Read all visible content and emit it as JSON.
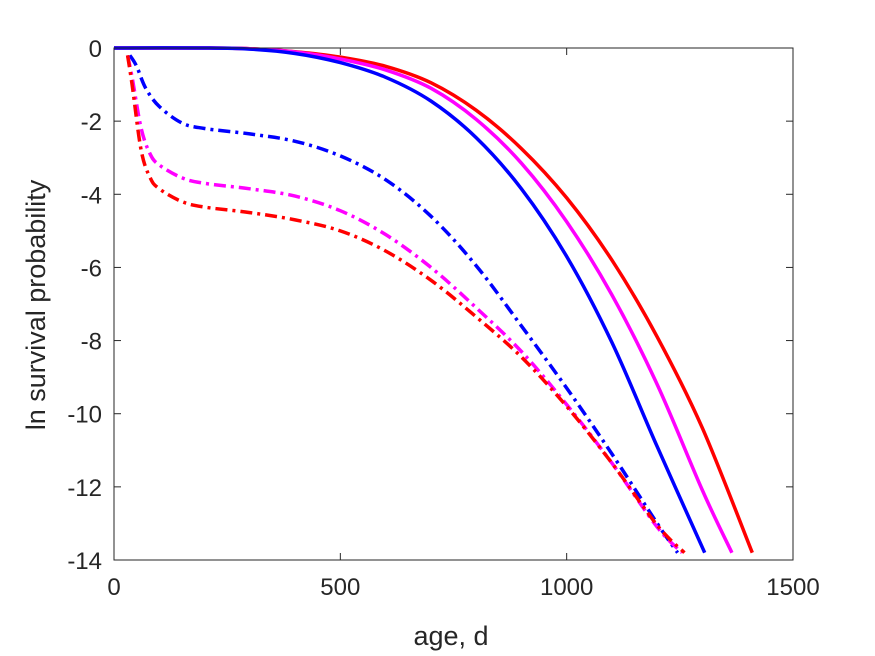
{
  "chart_data": {
    "type": "line",
    "title": "",
    "xlabel": "age, d",
    "ylabel": "ln survival probability",
    "xlim": [
      0,
      1500
    ],
    "ylim": [
      -14,
      0
    ],
    "xticks": [
      0,
      500,
      1000,
      1500
    ],
    "yticks": [
      0,
      -2,
      -4,
      -6,
      -8,
      -10,
      -12,
      -14
    ],
    "xtick_labels": [
      "0",
      "500",
      "1000",
      "1500"
    ],
    "ytick_labels": [
      "0",
      "-2",
      "-4",
      "-6",
      "-8",
      "-10",
      "-12",
      "-14"
    ],
    "grid": false,
    "box": true,
    "series": [
      {
        "color": "#ff0000",
        "style": "solid",
        "x": [
          0,
          200,
          300,
          400,
          500,
          600,
          700,
          800,
          900,
          1000,
          1100,
          1200,
          1300,
          1410
        ],
        "y": [
          0,
          0,
          -0.02,
          -0.1,
          -0.25,
          -0.5,
          -0.95,
          -1.7,
          -2.75,
          -4.1,
          -5.8,
          -7.9,
          -10.4,
          -13.8
        ]
      },
      {
        "color": "#ff00ff",
        "style": "solid",
        "x": [
          0,
          200,
          300,
          400,
          500,
          600,
          700,
          800,
          900,
          1000,
          1100,
          1200,
          1300,
          1365
        ],
        "y": [
          0,
          0,
          -0.02,
          -0.11,
          -0.3,
          -0.6,
          -1.1,
          -1.95,
          -3.15,
          -4.75,
          -6.75,
          -9.2,
          -12.1,
          -13.8
        ]
      },
      {
        "color": "#0000ff",
        "style": "solid",
        "x": [
          0,
          200,
          300,
          400,
          500,
          600,
          700,
          800,
          900,
          1000,
          1100,
          1200,
          1305
        ],
        "y": [
          0,
          0,
          -0.03,
          -0.15,
          -0.4,
          -0.8,
          -1.45,
          -2.45,
          -3.85,
          -5.7,
          -8.05,
          -10.9,
          -13.8
        ]
      },
      {
        "color": "#0000ff",
        "style": "dashdot",
        "x": [
          35,
          50,
          70,
          100,
          150,
          200,
          300,
          400,
          500,
          600,
          700,
          800,
          900,
          1000,
          1100,
          1200,
          1245
        ],
        "y": [
          -0.2,
          -0.5,
          -1.1,
          -1.6,
          -2.05,
          -2.2,
          -2.35,
          -2.55,
          -2.95,
          -3.6,
          -4.6,
          -5.95,
          -7.6,
          -9.3,
          -11.1,
          -13.0,
          -13.8
        ]
      },
      {
        "color": "#ff00ff",
        "style": "dashdot",
        "x": [
          30,
          40,
          60,
          80,
          100,
          150,
          200,
          300,
          400,
          500,
          600,
          700,
          800,
          900,
          1000,
          1100,
          1200,
          1255
        ],
        "y": [
          -0.2,
          -0.8,
          -2.2,
          -2.9,
          -3.2,
          -3.55,
          -3.7,
          -3.85,
          -4.05,
          -4.45,
          -5.1,
          -6.0,
          -7.1,
          -8.3,
          -9.75,
          -11.35,
          -13.1,
          -13.8
        ]
      },
      {
        "color": "#ff0000",
        "style": "dashdot",
        "x": [
          30,
          40,
          60,
          80,
          100,
          150,
          200,
          300,
          400,
          500,
          600,
          700,
          800,
          900,
          1000,
          1100,
          1200,
          1260
        ],
        "y": [
          -0.2,
          -1.0,
          -2.8,
          -3.55,
          -3.85,
          -4.2,
          -4.35,
          -4.5,
          -4.7,
          -5.0,
          -5.55,
          -6.35,
          -7.35,
          -8.45,
          -9.8,
          -11.35,
          -13.05,
          -13.8
        ]
      }
    ]
  }
}
